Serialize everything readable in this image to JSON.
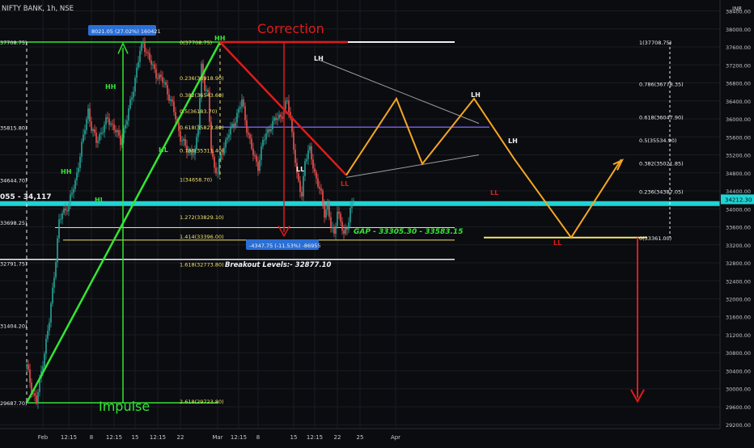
{
  "header": {
    "symbol_line": "NIFTY BANK, 1h, NSE",
    "currency": "INR"
  },
  "colors": {
    "bg": "#0b0c10",
    "grid": "#1a1c22",
    "up": "#26a69a",
    "down": "#ef5350",
    "green": "#33e633",
    "red": "#e01b1b",
    "orange": "#f5a623",
    "yellow": "#f2e36b",
    "purple": "#6f5bd6",
    "cyan": "#1fd4d4",
    "white": "#f0f0f0",
    "axis_text": "#c8c8c8"
  },
  "chart_data": {
    "type": "candlestick",
    "yaxis": {
      "range": [
        29150,
        38500
      ],
      "ticks": [
        "38400.00",
        "38000.00",
        "37600.00",
        "37200.00",
        "36800.00",
        "36400.00",
        "36000.00",
        "35600.00",
        "35200.00",
        "34800.00",
        "34400.00",
        "34000.00",
        "33600.00",
        "33200.00",
        "32800.00",
        "32400.00",
        "32000.00",
        "31600.00",
        "31200.00",
        "30800.00",
        "30400.00",
        "30000.00",
        "29600.00",
        "29200.00"
      ],
      "last_price_label": "34212.30",
      "last_price": 34212.3
    },
    "xaxis": {
      "ticks": [
        {
          "label": "Feb",
          "i": 10
        },
        {
          "label": "12:15",
          "i": 26
        },
        {
          "label": "8",
          "i": 40
        },
        {
          "label": "12:15",
          "i": 54
        },
        {
          "label": "15",
          "i": 67
        },
        {
          "label": "12:15",
          "i": 81
        },
        {
          "label": "22",
          "i": 95
        },
        {
          "label": "Mar",
          "i": 118
        },
        {
          "label": "12:15",
          "i": 131
        },
        {
          "label": "8",
          "i": 143
        },
        {
          "label": "15",
          "i": 165
        },
        {
          "label": "12:15",
          "i": 178
        },
        {
          "label": "22",
          "i": 192
        },
        {
          "label": "25",
          "i": 206
        },
        {
          "label": "Apr",
          "i": 228
        }
      ]
    },
    "anchors": [
      [
        0,
        30500
      ],
      [
        3,
        30000
      ],
      [
        6,
        29700
      ],
      [
        10,
        30600
      ],
      [
        14,
        31500
      ],
      [
        18,
        32900
      ],
      [
        20,
        33700
      ],
      [
        22,
        33900
      ],
      [
        26,
        34100
      ],
      [
        30,
        34600
      ],
      [
        34,
        35400
      ],
      [
        38,
        36200
      ],
      [
        40,
        35800
      ],
      [
        43,
        35500
      ],
      [
        46,
        35700
      ],
      [
        50,
        36000
      ],
      [
        54,
        35800
      ],
      [
        58,
        35500
      ],
      [
        62,
        36000
      ],
      [
        66,
        36700
      ],
      [
        70,
        37500
      ],
      [
        72,
        37700
      ],
      [
        76,
        37300
      ],
      [
        80,
        37000
      ],
      [
        85,
        36800
      ],
      [
        90,
        36300
      ],
      [
        95,
        35600
      ],
      [
        99,
        35300
      ],
      [
        104,
        35250
      ],
      [
        106,
        35800
      ],
      [
        108,
        37200
      ],
      [
        110,
        36700
      ],
      [
        112,
        36500
      ],
      [
        114,
        35400
      ],
      [
        116,
        34900
      ],
      [
        118,
        34800
      ],
      [
        120,
        35200
      ],
      [
        124,
        35600
      ],
      [
        128,
        35900
      ],
      [
        133,
        36400
      ],
      [
        136,
        35800
      ],
      [
        140,
        35200
      ],
      [
        143,
        34950
      ],
      [
        146,
        35500
      ],
      [
        150,
        35800
      ],
      [
        154,
        36000
      ],
      [
        158,
        36100
      ],
      [
        161,
        36400
      ],
      [
        163,
        36000
      ],
      [
        165,
        35400
      ],
      [
        167,
        34700
      ],
      [
        170,
        34300
      ],
      [
        172,
        35100
      ],
      [
        175,
        35300
      ],
      [
        178,
        34800
      ],
      [
        182,
        34300
      ],
      [
        184,
        33900
      ],
      [
        186,
        34100
      ],
      [
        188,
        33600
      ],
      [
        190,
        33400
      ],
      [
        192,
        34000
      ],
      [
        194,
        33700
      ],
      [
        196,
        33400
      ],
      [
        198,
        33600
      ],
      [
        200,
        34000
      ],
      [
        202,
        34200
      ]
    ],
    "annotations": {
      "title_correction": "Correction",
      "title_impulse": "Impulse",
      "hh_top": "HH",
      "hh1": "HH",
      "hh2": "HH",
      "hl1": "HL",
      "hl2": "HL",
      "lh1": "LH",
      "lh2": "LH",
      "lh3": "LH",
      "ll1": "LL",
      "ll2": "LL",
      "ll3": "LL",
      "ll4": "LL",
      "impulse_box": "8021.05 (27.02%) 160421",
      "correction_box": "-4347.75 (-11.53%) -86955",
      "gap_label": "GAP - 33305.30 - 33583.15",
      "breakout_label": "Breakout Levels:- 32877.10",
      "hline_label": "055 - 34,117"
    },
    "left_fib_labels": [
      {
        "text": "0(37708.75)",
        "price": 37708.75
      },
      {
        "text": "0.236(36918.90)",
        "price": 36918.9
      },
      {
        "text": "0.382(36543.60)",
        "price": 36543.6
      },
      {
        "text": "0.5(36183.70)",
        "price": 36183.7
      },
      {
        "text": "0.618(35823.80)",
        "price": 35823.8
      },
      {
        "text": "0.786(35311.40)",
        "price": 35311.4
      },
      {
        "text": "1(34658.70)",
        "price": 34658.7
      },
      {
        "text": "1.272(33829.10)",
        "price": 33829.1
      },
      {
        "text": "1.414(33396.00)",
        "price": 33396.0
      },
      {
        "text": "1.618(32773.80)",
        "price": 32773.8
      },
      {
        "text": "2.618(29723.80)",
        "price": 29723.8
      }
    ],
    "right_fib_labels": [
      {
        "text": "1(37708.75)",
        "price": 37708.75
      },
      {
        "text": "0.786(36778.35)",
        "price": 36778.35
      },
      {
        "text": "0.618(36047.90)",
        "price": 36047.9
      },
      {
        "text": "0.5(35534.90)",
        "price": 35534.9
      },
      {
        "text": "0.382(35021.85)",
        "price": 35021.85
      },
      {
        "text": "0.236(34387.05)",
        "price": 34387.05
      },
      {
        "text": "0(33361.00)",
        "price": 33361.0
      }
    ],
    "left_axis_labels": [
      {
        "text": "37708.75)",
        "price": 37708.75
      },
      {
        "text": "35815.80)",
        "price": 35815.8
      },
      {
        "text": "34644.70)",
        "price": 34644.7
      },
      {
        "text": "33698.25)",
        "price": 33698.25
      },
      {
        "text": "32791.75)",
        "price": 32791.75
      },
      {
        "text": "31404.20)",
        "price": 31404.2
      },
      {
        "text": "29687.70)",
        "price": 29687.7
      }
    ]
  }
}
